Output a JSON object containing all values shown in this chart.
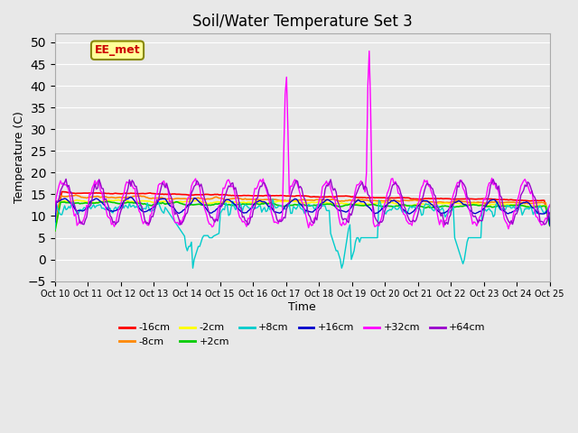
{
  "title": "Soil/Water Temperature Set 3",
  "xlabel": "Time",
  "ylabel": "Temperature (C)",
  "ylim": [
    -5,
    52
  ],
  "yticks": [
    -5,
    0,
    5,
    10,
    15,
    20,
    25,
    30,
    35,
    40,
    45,
    50
  ],
  "series_colors": {
    "-16cm": "#ff0000",
    "-8cm": "#ff8800",
    "-2cm": "#ffff00",
    "+2cm": "#00cc00",
    "+8cm": "#00cccc",
    "+16cm": "#0000cc",
    "+32cm": "#ff00ff",
    "+64cm": "#9900cc"
  },
  "background_color": "#e8e8e8",
  "annotation_text": "EE_met",
  "annotation_color": "#cc0000",
  "annotation_bg": "#ffff99",
  "annotation_border": "#888800"
}
